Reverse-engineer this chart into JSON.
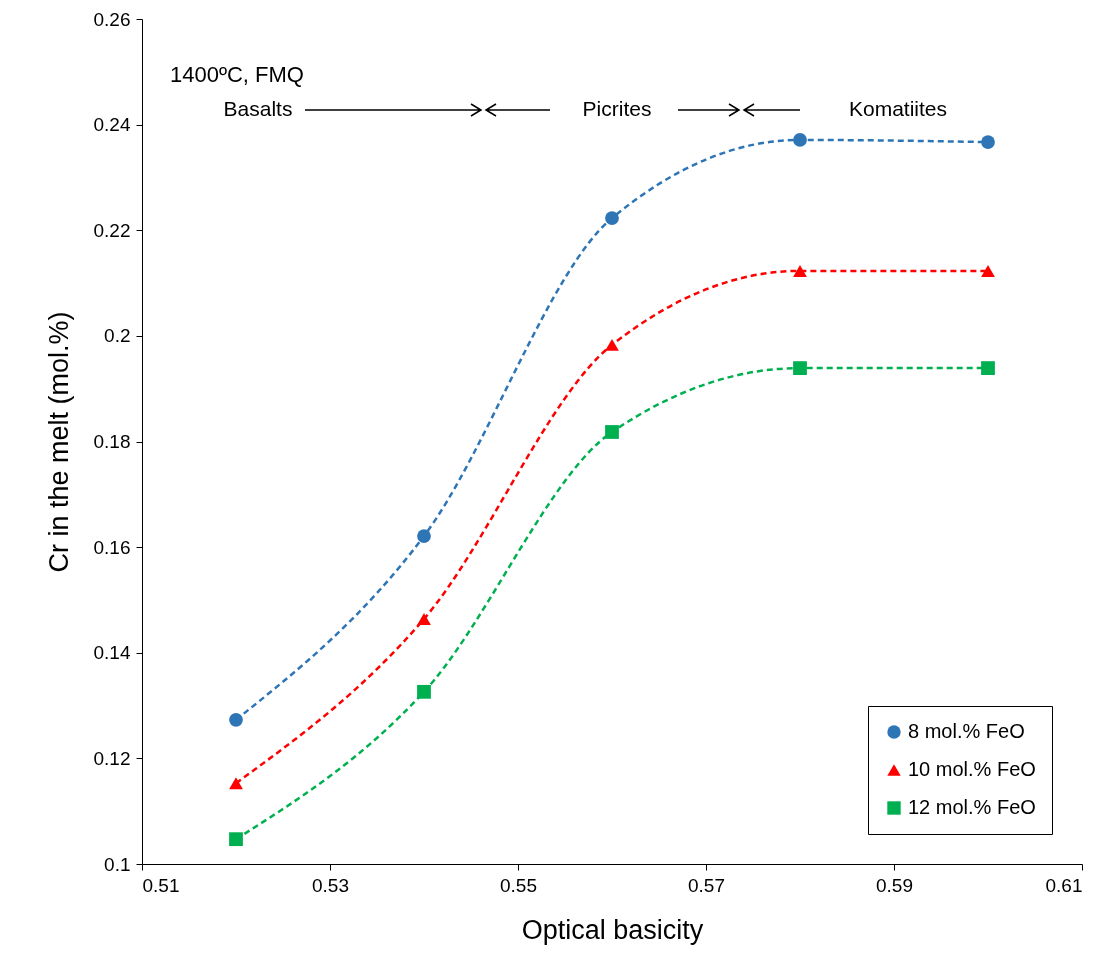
{
  "chart_data": {
    "type": "line",
    "xlabel": "Optical basicity",
    "ylabel": "Cr in the melt (mol.%)",
    "annotations": [
      "1400ºC, FMQ",
      "Basalts",
      "Picrites",
      "Komatiites"
    ],
    "x": [
      0.52,
      0.54,
      0.56,
      0.58,
      0.6
    ],
    "series": [
      {
        "name": "8 mol.% FeO",
        "color": "#2e75b6",
        "marker": "circle",
        "values": [
          0.1273,
          0.1621,
          0.2223,
          0.2371,
          0.2367
        ]
      },
      {
        "name": "10 mol.% FeO",
        "color": "#ff0000",
        "marker": "triangle",
        "values": [
          0.1153,
          0.1464,
          0.1983,
          0.2123,
          0.2123
        ]
      },
      {
        "name": "12 mol.% FeO",
        "color": "#00b050",
        "marker": "square",
        "values": [
          0.1047,
          0.1326,
          0.1818,
          0.1939,
          0.1939
        ]
      }
    ],
    "xlim": [
      0.51,
      0.61
    ],
    "xticks": [
      0.51,
      0.53,
      0.55,
      0.57,
      0.59,
      0.61
    ],
    "ylim": [
      0.1,
      0.26
    ],
    "yticks": [
      0.1,
      0.12,
      0.14,
      0.16,
      0.18,
      0.2,
      0.22,
      0.24,
      0.26
    ],
    "grid": false,
    "legend": "bottom right",
    "line_style": "dashed"
  }
}
